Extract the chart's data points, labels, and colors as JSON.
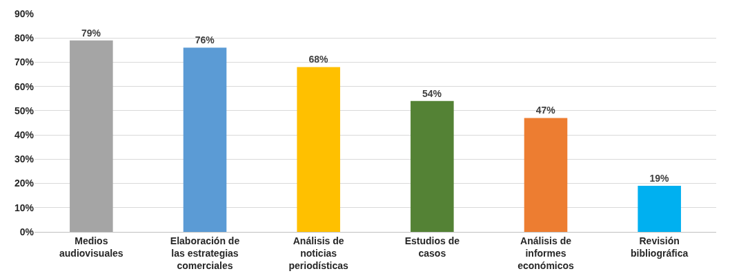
{
  "chart_data": {
    "type": "bar",
    "categories": [
      "Medios\naudiovisuales",
      "Elaboración de\nlas estrategias\ncomerciales",
      "Análisis de\nnoticias\nperiodísticas",
      "Estudios de\ncasos",
      "Análisis de\ninformes\neconómicos",
      "Revisión\nbibliográfica"
    ],
    "values": [
      79,
      76,
      68,
      54,
      47,
      19
    ],
    "colors": [
      "#a5a5a5",
      "#5b9bd5",
      "#ffc000",
      "#548235",
      "#ed7d31",
      "#00b0f0"
    ],
    "value_labels": [
      "79%",
      "76%",
      "68%",
      "54%",
      "47%",
      "19%"
    ],
    "ylim": [
      0,
      90
    ],
    "yticks": [
      {
        "value": 0,
        "label": "0%"
      },
      {
        "value": 10,
        "label": "10%"
      },
      {
        "value": 20,
        "label": "20%"
      },
      {
        "value": 30,
        "label": "30%"
      },
      {
        "value": 40,
        "label": "40%"
      },
      {
        "value": 50,
        "label": "50%"
      },
      {
        "value": 60,
        "label": "60%"
      },
      {
        "value": 70,
        "label": "70%"
      },
      {
        "value": 80,
        "label": "80%"
      },
      {
        "value": 90,
        "label": "90%"
      }
    ],
    "grid": "y"
  }
}
